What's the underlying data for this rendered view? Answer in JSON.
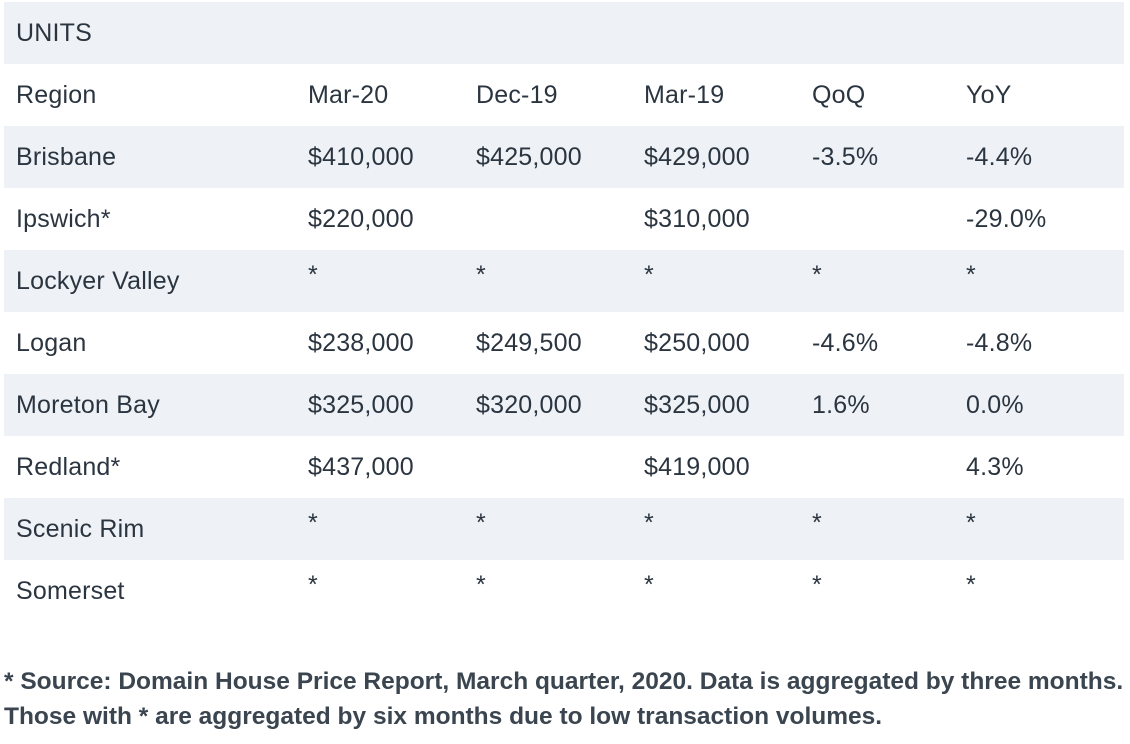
{
  "table": {
    "title": "UNITS",
    "headers": [
      "Region",
      "Mar-20",
      "Dec-19",
      "Mar-19",
      "QoQ",
      "YoY"
    ],
    "rows": [
      [
        "Brisbane",
        "$410,000",
        "$425,000",
        "$429,000",
        "-3.5%",
        "-4.4%"
      ],
      [
        "Ipswich*",
        "$220,000",
        "",
        "$310,000",
        "",
        "-29.0%"
      ],
      [
        "Lockyer Valley",
        "*",
        "*",
        "*",
        "*",
        "*"
      ],
      [
        "Logan",
        "$238,000",
        "$249,500",
        "$250,000",
        "-4.6%",
        "-4.8%"
      ],
      [
        "Moreton Bay",
        "$325,000",
        "$320,000",
        "$325,000",
        "1.6%",
        "0.0%"
      ],
      [
        "Redland*",
        "$437,000",
        "",
        "$419,000",
        "",
        "4.3%"
      ],
      [
        "Scenic Rim",
        "*",
        "*",
        "*",
        "*",
        "*"
      ],
      [
        "Somerset",
        "*",
        "*",
        "*",
        "*",
        "*"
      ]
    ]
  },
  "footnote": "* Source: Domain House Price Report, March quarter, 2020. Data is aggregated by three months. Those with * are aggregated by six months due to low transaction volumes.",
  "colors": {
    "shaded_row": "#eef1f5",
    "text": "#2b3540"
  }
}
